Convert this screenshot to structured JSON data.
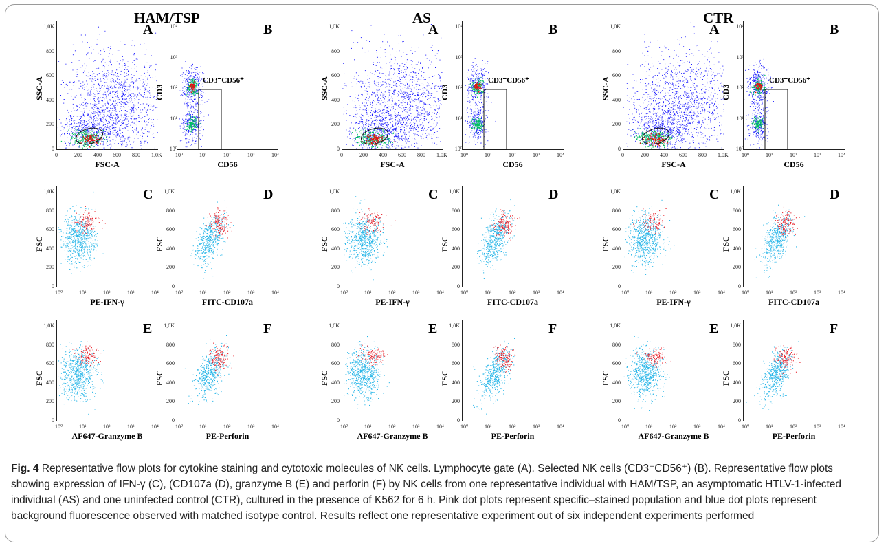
{
  "groups": [
    {
      "id": "ham",
      "title": "HAM/TSP"
    },
    {
      "id": "as",
      "title": "AS"
    },
    {
      "id": "ctr",
      "title": "CTR"
    }
  ],
  "panel_letters": {
    "A": "A",
    "B": "B",
    "C": "C",
    "D": "D",
    "E": "E",
    "F": "F"
  },
  "axes": {
    "fsc_a": "FSC-A",
    "ssc_a": "SSC-A",
    "cd3": "CD3",
    "cd56": "CD56",
    "fsc": "FSC",
    "pe_ifn": "PE-IFN-γ",
    "fitc_cd107a": "FITC-CD107a",
    "af647_granzyme": "AF647-Granzyme B",
    "pe_perforin": "PE-Perforin"
  },
  "ticks": {
    "linear_x": [
      "0",
      "200",
      "400",
      "600",
      "800",
      "1,0K"
    ],
    "linear_y": [
      "0",
      "200",
      "400",
      "600",
      "800",
      "1,0K"
    ],
    "log": [
      "10⁰",
      "10¹",
      "10²",
      "10³",
      "10⁴"
    ]
  },
  "gate_label": "CD3⁻CD56⁺",
  "colors": {
    "background_dots": "#29b6e8",
    "stained_dots": "#e8202a",
    "density_low": "#1a1aff",
    "density_mid": "#00c060",
    "density_high": "#e81010"
  },
  "caption": {
    "fig_label": "Fig. 4",
    "text": " Representative flow plots for cytokine staining and cytotoxic molecules of NK cells. Lymphocyte gate (A). Selected NK cells (CD3⁻CD56⁺) (B). Representative flow plots showing expression of IFN-γ (C), (CD107a (D), granzyme B (E) and perforin (F) by NK cells from one representative individual with HAM/TSP, an asymptomatic HTLV-1-infected individual (AS) and one uninfected control (CTR), cultured in the presence of K562 for 6 h. Pink dot plots represent specific–stained population and blue dot plots represent background fluorescence observed with matched isotype control. Results reflect one representative experiment out of six independent experiments performed"
  }
}
